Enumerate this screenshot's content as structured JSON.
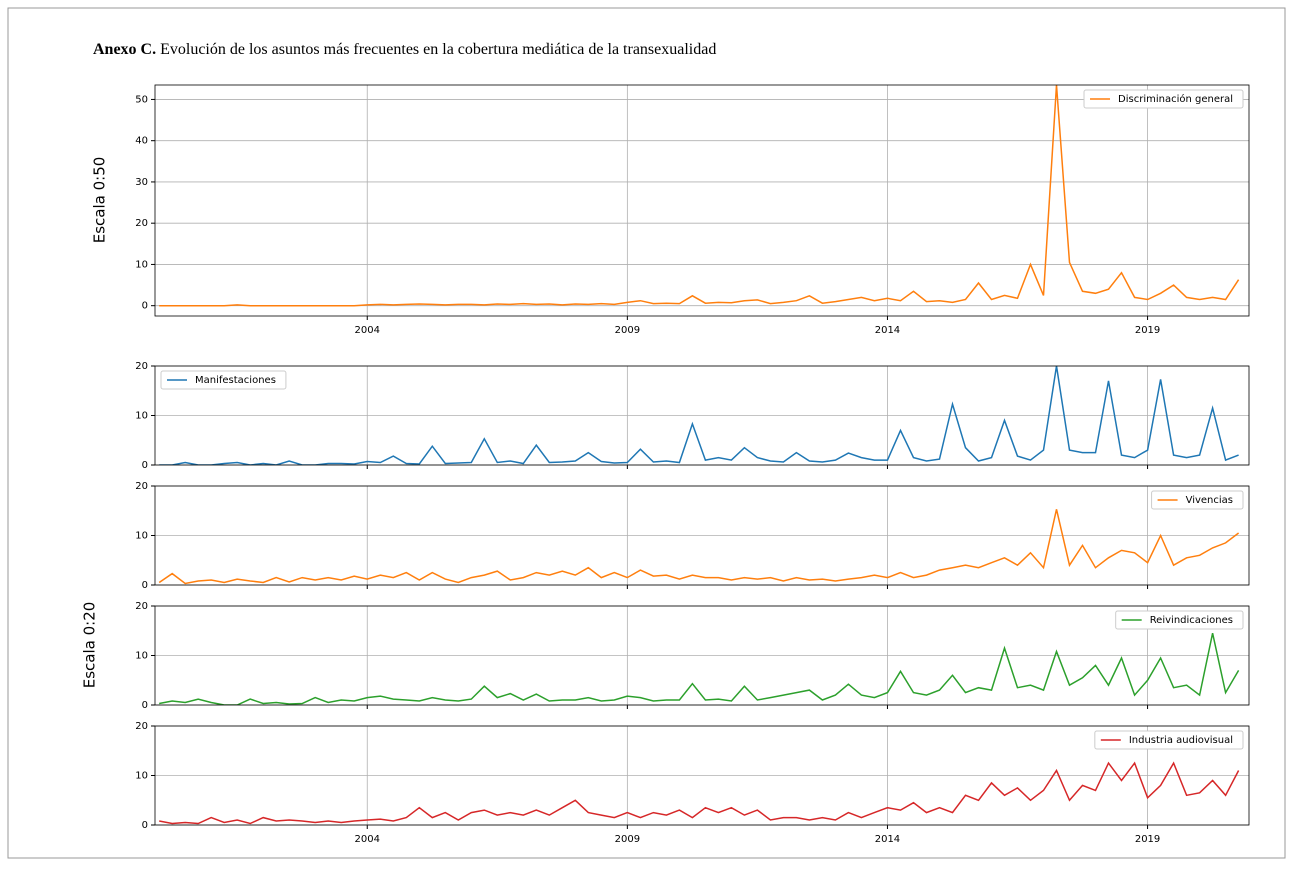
{
  "chart_data": {
    "type": "line",
    "title_prefix": "Anexo C.",
    "title": "Evolución de los asuntos más frecuentes en la cobertura mediática de la transexualidad",
    "scale_labels": [
      "Escala 0:50",
      "Escala 0:20"
    ],
    "grid": true,
    "xlim": [
      1999.92,
      2020.95
    ],
    "xticks": [
      2004,
      2009,
      2014,
      2019
    ],
    "x": [
      2000,
      2000.25,
      2000.5,
      2000.75,
      2001,
      2001.25,
      2001.5,
      2001.75,
      2002,
      2002.25,
      2002.5,
      2002.75,
      2003,
      2003.25,
      2003.5,
      2003.75,
      2004,
      2004.25,
      2004.5,
      2004.75,
      2005,
      2005.25,
      2005.5,
      2005.75,
      2006,
      2006.25,
      2006.5,
      2006.75,
      2007,
      2007.25,
      2007.5,
      2007.75,
      2008,
      2008.25,
      2008.5,
      2008.75,
      2009,
      2009.25,
      2009.5,
      2009.75,
      2010,
      2010.25,
      2010.5,
      2010.75,
      2011,
      2011.25,
      2011.5,
      2011.75,
      2012,
      2012.25,
      2012.5,
      2012.75,
      2013,
      2013.25,
      2013.5,
      2013.75,
      2014,
      2014.25,
      2014.5,
      2014.75,
      2015,
      2015.25,
      2015.5,
      2015.75,
      2016,
      2016.25,
      2016.5,
      2016.75,
      2017,
      2017.25,
      2017.5,
      2017.75,
      2018,
      2018.25,
      2018.5,
      2018.75,
      2019,
      2019.25,
      2019.5,
      2019.75,
      2020,
      2020.25,
      2020.5,
      2020.75
    ],
    "series": [
      {
        "name": "Discriminación general",
        "color": "#ff7f0e",
        "ylim": [
          -2.5,
          53.5
        ],
        "yticks": [
          0,
          10,
          20,
          30,
          40,
          50
        ],
        "legend": "upper right",
        "values": [
          0,
          0,
          0,
          0,
          0,
          0,
          0.2,
          0,
          0,
          0,
          0,
          0,
          0,
          0,
          0,
          0,
          0.2,
          0.3,
          0.2,
          0.3,
          0.4,
          0.3,
          0.2,
          0.3,
          0.3,
          0.2,
          0.4,
          0.3,
          0.5,
          0.3,
          0.4,
          0.2,
          0.4,
          0.3,
          0.5,
          0.3,
          0.8,
          1.2,
          0.5,
          0.6,
          0.5,
          2.4,
          0.6,
          0.8,
          0.7,
          1.2,
          1.4,
          0.5,
          0.8,
          1.2,
          2.4,
          0.6,
          1.0,
          1.5,
          2.0,
          1.2,
          1.8,
          1.2,
          3.5,
          1.0,
          1.2,
          0.8,
          1.5,
          5.5,
          1.5,
          2.5,
          1.8,
          10,
          2.5,
          53.5,
          10.5,
          3.5,
          3.0,
          4.0,
          8.0,
          2.0,
          1.5,
          3.0,
          5.0,
          2.0,
          1.5,
          2.0,
          1.5,
          6.3
        ]
      },
      {
        "name": "Manifestaciones",
        "color": "#1f77b4",
        "ylim": [
          0,
          20
        ],
        "yticks": [
          0,
          10,
          20
        ],
        "legend": "upper left",
        "values": [
          0,
          0,
          0.5,
          0,
          0,
          0.3,
          0.5,
          0,
          0.3,
          0,
          0.8,
          0,
          0,
          0.3,
          0.3,
          0.2,
          0.7,
          0.5,
          1.8,
          0.3,
          0.2,
          3.8,
          0.3,
          0.4,
          0.5,
          5.3,
          0.5,
          0.8,
          0.3,
          4.0,
          0.5,
          0.6,
          0.8,
          2.5,
          0.7,
          0.4,
          0.5,
          3.2,
          0.6,
          0.8,
          0.5,
          8.3,
          1.0,
          1.5,
          1.0,
          3.5,
          1.5,
          0.8,
          0.6,
          2.5,
          0.8,
          0.6,
          1.0,
          2.4,
          1.5,
          1.0,
          1.0,
          7.0,
          1.5,
          0.8,
          1.2,
          12.3,
          3.5,
          0.8,
          1.5,
          9.0,
          1.8,
          1.0,
          3.0,
          20,
          3.0,
          2.5,
          2.5,
          17,
          2.0,
          1.5,
          3.0,
          17.3,
          2.0,
          1.5,
          2.0,
          11.5,
          1.0,
          2.0
        ]
      },
      {
        "name": "Vivencias",
        "color": "#ff7f0e",
        "ylim": [
          0,
          20
        ],
        "yticks": [
          0,
          10,
          20
        ],
        "legend": "upper right",
        "values": [
          0.5,
          2.3,
          0.3,
          0.8,
          1.0,
          0.5,
          1.2,
          0.8,
          0.5,
          1.5,
          0.6,
          1.5,
          1.0,
          1.5,
          1.0,
          1.8,
          1.2,
          2.0,
          1.5,
          2.5,
          1.0,
          2.5,
          1.2,
          0.5,
          1.5,
          2.0,
          2.8,
          1.0,
          1.5,
          2.5,
          2.0,
          2.8,
          2.0,
          3.5,
          1.5,
          2.5,
          1.5,
          3.0,
          1.8,
          2.0,
          1.2,
          2.0,
          1.5,
          1.5,
          1.0,
          1.5,
          1.2,
          1.5,
          0.8,
          1.5,
          1.0,
          1.2,
          0.8,
          1.2,
          1.5,
          2.0,
          1.5,
          2.5,
          1.5,
          2.0,
          3.0,
          3.5,
          4.0,
          3.5,
          4.5,
          5.5,
          4.0,
          6.5,
          3.5,
          15.3,
          4.0,
          8.0,
          3.5,
          5.5,
          7.0,
          6.5,
          4.5,
          10.0,
          4.0,
          5.5,
          6.0,
          7.5,
          8.5,
          10.5
        ]
      },
      {
        "name": "Reivindicaciones",
        "color": "#2ca02c",
        "ylim": [
          0,
          20
        ],
        "yticks": [
          0,
          10,
          20
        ],
        "legend": "upper right",
        "values": [
          0.3,
          0.8,
          0.5,
          1.2,
          0.5,
          0,
          0,
          1.2,
          0.3,
          0.5,
          0.2,
          0.3,
          1.5,
          0.5,
          1.0,
          0.8,
          1.5,
          1.8,
          1.2,
          1.0,
          0.8,
          1.5,
          1.0,
          0.8,
          1.2,
          3.8,
          1.5,
          2.3,
          1.0,
          2.2,
          0.8,
          1.0,
          1.0,
          1.5,
          0.8,
          1.0,
          1.8,
          1.5,
          0.8,
          1.0,
          1.0,
          4.3,
          1.0,
          1.2,
          0.8,
          3.8,
          1.0,
          1.5,
          2.0,
          2.5,
          3.0,
          1.0,
          2.0,
          4.2,
          2.0,
          1.5,
          2.5,
          6.8,
          2.5,
          2.0,
          3.0,
          6.0,
          2.5,
          3.5,
          3.0,
          11.5,
          3.5,
          4.0,
          3.0,
          10.8,
          4.0,
          5.5,
          8.0,
          4.0,
          9.5,
          2.0,
          5.0,
          9.5,
          3.5,
          4.0,
          2.0,
          14.5,
          2.5,
          7.0
        ]
      },
      {
        "name": "Industria audiovisual",
        "color": "#d62728",
        "ylim": [
          0,
          20
        ],
        "yticks": [
          0,
          10,
          20
        ],
        "legend": "upper right",
        "values": [
          0.8,
          0.3,
          0.5,
          0.3,
          1.5,
          0.5,
          1.0,
          0.3,
          1.5,
          0.8,
          1.0,
          0.8,
          0.5,
          0.8,
          0.5,
          0.8,
          1.0,
          1.2,
          0.8,
          1.5,
          3.5,
          1.5,
          2.5,
          1.0,
          2.5,
          3.0,
          2.0,
          2.5,
          2.0,
          3.0,
          2.0,
          3.5,
          5.0,
          2.5,
          2.0,
          1.5,
          2.5,
          1.5,
          2.5,
          2.0,
          3.0,
          1.5,
          3.5,
          2.5,
          3.5,
          2.0,
          3.0,
          1.0,
          1.5,
          1.5,
          1.0,
          1.5,
          1.0,
          2.5,
          1.5,
          2.5,
          3.5,
          3.0,
          4.5,
          2.5,
          3.5,
          2.5,
          6.0,
          5.0,
          8.5,
          6.0,
          7.5,
          5.0,
          7.0,
          11.0,
          5.0,
          8.0,
          7.0,
          12.5,
          9.0,
          12.5,
          5.5,
          8.0,
          12.5,
          6.0,
          6.5,
          9.0,
          6.0,
          11.0
        ]
      }
    ]
  }
}
